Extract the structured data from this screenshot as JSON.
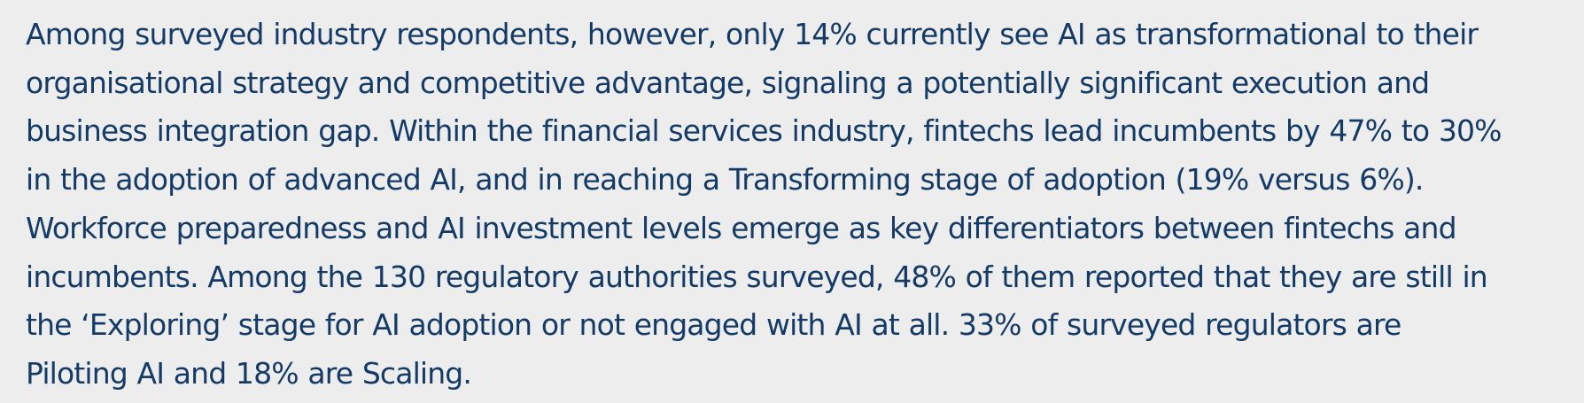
{
  "paragraph": {
    "lines": [
      "Among surveyed industry respondents, however, only 14% currently see AI as transformational to their",
      "organisational strategy and competitive advantage, signaling a potentially significant execution and",
      "business integration gap. Within the financial services industry, fintechs lead incumbents by 47% to 30%",
      "in the adoption of advanced AI, and in reaching a Transforming stage of adoption (19% versus 6%).",
      "Workforce preparedness and AI investment levels emerge as key differentiators between fintechs and",
      "incumbents. Among the 130 regulatory authorities surveyed, 48% of them reported that they are still in",
      "the ‘Exploring’ stage for AI adoption or not engaged with AI at all. 33% of surveyed regulators are",
      "Piloting AI and 18% are Scaling."
    ]
  },
  "colors": {
    "text": "#143a66",
    "background": "#ededed"
  }
}
